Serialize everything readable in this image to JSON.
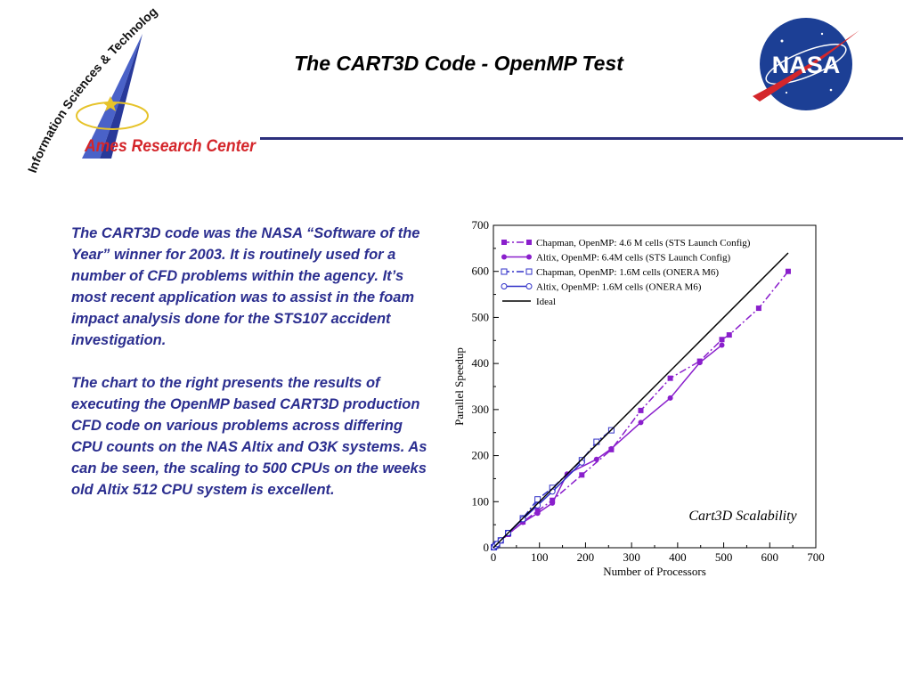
{
  "header": {
    "title": "The CART3D Code - OpenMP Test",
    "center_name": "Ames Research Center",
    "arc_text": "Information Sciences & Technology",
    "nasa_logo_text": "NASA"
  },
  "body": {
    "paragraphs": [
      "The CART3D code was the NASA “Software of the Year” winner for 2003. It is routinely used for a number of CFD problems within the agency. It’s most recent application was to assist in the foam impact analysis done for the STS107 accident investigation.",
      "The chart to the right presents the results of executing the OpenMP based CART3D production CFD code on various problems across differing CPU counts on the NAS Altix and O3K systems. As can be seen, the scaling to 500 CPUs on the weeks old Altix 512 CPU system is excellent."
    ]
  },
  "colors": {
    "text_blue": "#2b2e8f",
    "rule_blue": "#2c2f7c",
    "logo_red": "#d4262b",
    "nasa_blue": "#1c3f95",
    "series_purple": "#8a1fcc",
    "series_blue": "#3030c8",
    "ideal": "#000000"
  },
  "chart_data": {
    "type": "line",
    "title": "",
    "annotation": "Cart3D Scalability",
    "xlabel": "Number of Processors",
    "ylabel": "Parallel Speedup",
    "xlim": [
      0,
      700
    ],
    "ylim": [
      0,
      700
    ],
    "xticks": [
      0,
      100,
      200,
      300,
      400,
      500,
      600,
      700
    ],
    "yticks": [
      0,
      100,
      200,
      300,
      400,
      500,
      600,
      700
    ],
    "legend_position": "top-left",
    "series": [
      {
        "name": "Chapman, OpenMP: 4.6 M cells (STS Launch Config)",
        "color": "#8a1fcc",
        "dash": "dash-dot",
        "marker": "filled-square",
        "x": [
          1,
          4,
          8,
          16,
          32,
          64,
          96,
          128,
          192,
          256,
          320,
          384,
          448,
          496,
          512,
          576,
          640
        ],
        "y": [
          1,
          4,
          8,
          15,
          29,
          56,
          80,
          103,
          158,
          213,
          298,
          368,
          405,
          452,
          462,
          520,
          600
        ]
      },
      {
        "name": "Altix, OpenMP: 6.4M cells (STS Launch Config)",
        "color": "#8a1fcc",
        "dash": "solid",
        "marker": "filled-circle",
        "x": [
          1,
          4,
          8,
          16,
          32,
          64,
          96,
          128,
          160,
          224,
          256,
          320,
          384,
          448,
          496
        ],
        "y": [
          1,
          4,
          8,
          16,
          30,
          55,
          75,
          97,
          160,
          192,
          215,
          272,
          325,
          402,
          440
        ]
      },
      {
        "name": "Chapman, OpenMP: 1.6M cells (ONERA M6)",
        "color": "#3030c8",
        "dash": "dash-dot",
        "marker": "open-dot-square",
        "x": [
          1,
          4,
          8,
          16,
          32,
          64,
          96,
          128,
          192,
          224,
          256
        ],
        "y": [
          1,
          4,
          8,
          16,
          32,
          64,
          105,
          130,
          190,
          230,
          255
        ]
      },
      {
        "name": "Altix, OpenMP: 1.6M cells (ONERA M6)",
        "color": "#3030c8",
        "dash": "solid",
        "marker": "open-dot-circle",
        "x": [
          1,
          4,
          8,
          16,
          32,
          64,
          96,
          128,
          192
        ],
        "y": [
          1,
          4,
          8,
          16,
          32,
          62,
          92,
          122,
          185
        ]
      },
      {
        "name": "Ideal",
        "color": "#000000",
        "dash": "solid",
        "marker": "none",
        "x": [
          0,
          640
        ],
        "y": [
          0,
          640
        ]
      }
    ]
  }
}
